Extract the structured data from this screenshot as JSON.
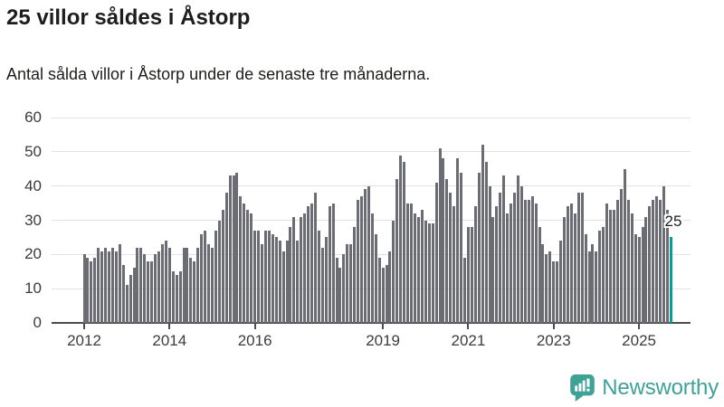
{
  "header": {
    "title": "25 villor såldes i Åstorp",
    "subtitle": "Antal sålda villor i Åstorp under de senaste tre månaderna."
  },
  "chart_data": {
    "type": "bar",
    "title": "25 villor såldes i Åstorp",
    "subtitle": "Antal sålda villor i Åstorp under de senaste tre månaderna.",
    "x_start_month": "2012-01",
    "x_frequency": "monthly",
    "values": [
      20,
      19,
      18,
      19,
      22,
      21,
      22,
      21,
      22,
      21,
      23,
      17,
      11,
      14,
      16,
      22,
      22,
      20,
      18,
      18,
      20,
      21,
      23,
      24,
      22,
      15,
      14,
      15,
      22,
      22,
      19,
      18,
      22,
      26,
      27,
      23,
      22,
      27,
      30,
      33,
      38,
      43,
      43,
      44,
      37,
      35,
      33,
      32,
      27,
      27,
      23,
      27,
      27,
      26,
      25,
      24,
      21,
      24,
      28,
      31,
      24,
      31,
      32,
      34,
      35,
      38,
      27,
      22,
      25,
      34,
      35,
      19,
      16,
      20,
      23,
      23,
      28,
      36,
      37,
      39,
      40,
      32,
      26,
      19,
      16,
      17,
      21,
      30,
      42,
      49,
      47,
      35,
      35,
      32,
      31,
      33,
      30,
      29,
      29,
      41,
      51,
      48,
      42,
      38,
      34,
      48,
      44,
      19,
      28,
      28,
      34,
      44,
      52,
      47,
      40,
      31,
      34,
      38,
      43,
      32,
      35,
      38,
      43,
      40,
      36,
      36,
      37,
      35,
      28,
      23,
      20,
      21,
      18,
      18,
      24,
      31,
      34,
      35,
      32,
      38,
      38,
      26,
      21,
      23,
      21,
      27,
      28,
      35,
      33,
      33,
      36,
      39,
      45,
      36,
      32,
      26,
      25,
      28,
      31,
      34,
      36,
      37,
      36,
      40,
      33,
      25
    ],
    "highlight_index": 165,
    "highlight_value_label": "25",
    "ylim": [
      0,
      60
    ],
    "yticks": [
      0,
      10,
      20,
      30,
      40,
      50,
      60
    ],
    "xticks": [
      {
        "label": "2012",
        "month_index": 0
      },
      {
        "label": "2014",
        "month_index": 24
      },
      {
        "label": "2016",
        "month_index": 48
      },
      {
        "label": "2019",
        "month_index": 84
      },
      {
        "label": "2021",
        "month_index": 108
      },
      {
        "label": "2023",
        "month_index": 132
      },
      {
        "label": "2025",
        "month_index": 156
      }
    ],
    "grid": true,
    "legend": "none",
    "colors": {
      "bar": "#6c6c74",
      "highlight": "#089e96",
      "gridline": "#e2e2e2",
      "axis": "#4d4d4d",
      "text": "#1d1d1b",
      "tick_text": "#3c3c3c"
    }
  },
  "footer": {
    "brand": "Newsworthy",
    "brand_color": "#3ea296"
  }
}
